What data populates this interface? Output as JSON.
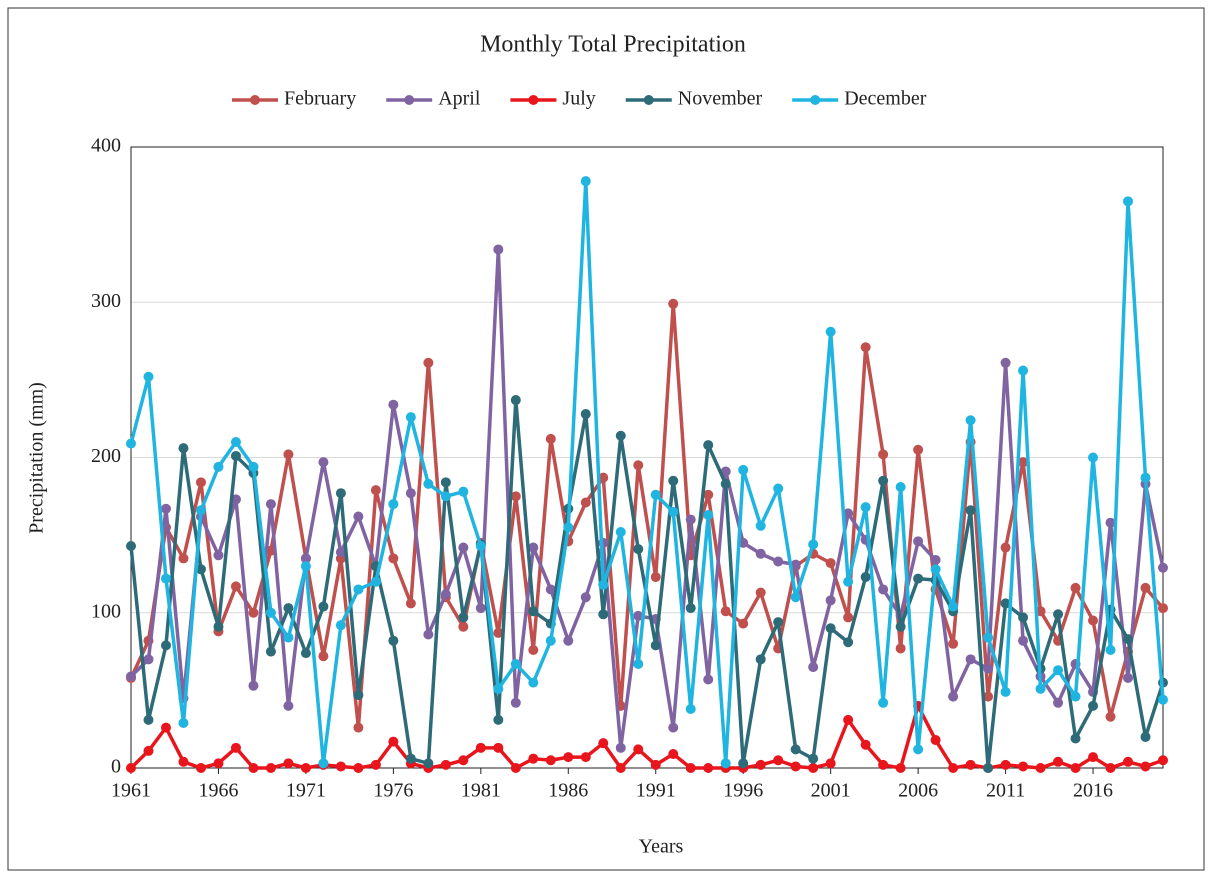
{
  "chart_data": {
    "type": "line",
    "title": "Monthly Total Precipitation",
    "xlabel": "Years",
    "ylabel": "Precipitation (mm)",
    "x": [
      1961,
      1962,
      1963,
      1964,
      1965,
      1966,
      1967,
      1968,
      1969,
      1970,
      1971,
      1972,
      1973,
      1974,
      1975,
      1976,
      1977,
      1978,
      1979,
      1980,
      1981,
      1982,
      1983,
      1984,
      1985,
      1986,
      1987,
      1988,
      1989,
      1990,
      1991,
      1992,
      1993,
      1994,
      1995,
      1996,
      1997,
      1998,
      1999,
      2000,
      2001,
      2002,
      2003,
      2004,
      2005,
      2006,
      2007,
      2008,
      2009,
      2010,
      2011,
      2012,
      2013,
      2014,
      2015,
      2016,
      2017,
      2018,
      2019,
      2020
    ],
    "xlim": [
      1961,
      2020
    ],
    "xticks": [
      1961,
      1966,
      1971,
      1976,
      1981,
      1986,
      1991,
      1996,
      2001,
      2006,
      2011,
      2016
    ],
    "ylim": [
      0,
      400
    ],
    "yticks": [
      0,
      100,
      200,
      300,
      400
    ],
    "grid": true,
    "legend": "top",
    "series": [
      {
        "name": "February",
        "color": "#c0504d",
        "values": [
          58,
          82,
          155,
          135,
          184,
          88,
          117,
          100,
          140,
          202,
          135,
          72,
          135,
          26,
          179,
          135,
          106,
          261,
          110,
          91,
          145,
          87,
          175,
          76,
          212,
          146,
          171,
          187,
          40,
          195,
          123,
          299,
          137,
          176,
          101,
          93,
          113,
          77,
          130,
          138,
          132,
          97,
          271,
          202,
          77,
          205,
          115,
          80,
          210,
          46,
          142,
          197,
          101,
          82,
          116,
          95,
          33,
          75,
          116,
          103
        ]
      },
      {
        "name": "April",
        "color": "#8064a2",
        "values": [
          59,
          70,
          167,
          45,
          162,
          137,
          173,
          53,
          170,
          40,
          135,
          197,
          139,
          162,
          130,
          234,
          177,
          86,
          112,
          142,
          103,
          334,
          42,
          142,
          115,
          82,
          110,
          145,
          13,
          98,
          96,
          26,
          160,
          57,
          191,
          145,
          138,
          133,
          131,
          65,
          108,
          164,
          147,
          115,
          98,
          146,
          134,
          46,
          70,
          64,
          261,
          82,
          59,
          42,
          67,
          49,
          158,
          58,
          183,
          129
        ]
      },
      {
        "name": "July",
        "color": "#e8151c",
        "values": [
          0,
          11,
          26,
          4,
          0,
          3,
          13,
          0,
          0,
          3,
          0,
          2,
          1,
          0,
          2,
          17,
          3,
          0,
          2,
          5,
          13,
          13,
          0,
          6,
          5,
          7,
          7,
          16,
          0,
          12,
          2,
          9,
          0,
          0,
          0,
          0,
          2,
          5,
          1,
          0,
          3,
          31,
          15,
          2,
          0,
          40,
          18,
          0,
          2,
          0,
          2,
          1,
          0,
          4,
          0,
          7,
          0,
          4,
          1,
          5
        ]
      },
      {
        "name": "November",
        "color": "#2e6b78",
        "values": [
          143,
          31,
          79,
          206,
          128,
          91,
          201,
          190,
          75,
          103,
          74,
          104,
          177,
          47,
          130,
          82,
          6,
          3,
          184,
          97,
          144,
          31,
          237,
          101,
          93,
          167,
          228,
          99,
          214,
          141,
          79,
          185,
          103,
          208,
          183,
          3,
          70,
          94,
          12,
          6,
          90,
          81,
          123,
          185,
          91,
          122,
          121,
          101,
          166,
          0,
          106,
          97,
          64,
          99,
          19,
          40,
          102,
          83,
          20,
          55
        ]
      },
      {
        "name": "December",
        "color": "#1fb5e0",
        "values": [
          209,
          252,
          122,
          29,
          166,
          194,
          210,
          194,
          100,
          84,
          130,
          3,
          92,
          115,
          120,
          170,
          226,
          183,
          175,
          178,
          143,
          51,
          67,
          55,
          82,
          155,
          378,
          118,
          152,
          67,
          176,
          165,
          38,
          163,
          3,
          192,
          156,
          180,
          110,
          144,
          281,
          120,
          168,
          42,
          181,
          12,
          128,
          104,
          224,
          84,
          49,
          256,
          51,
          63,
          46,
          200,
          76,
          365,
          187,
          44
        ]
      }
    ]
  }
}
